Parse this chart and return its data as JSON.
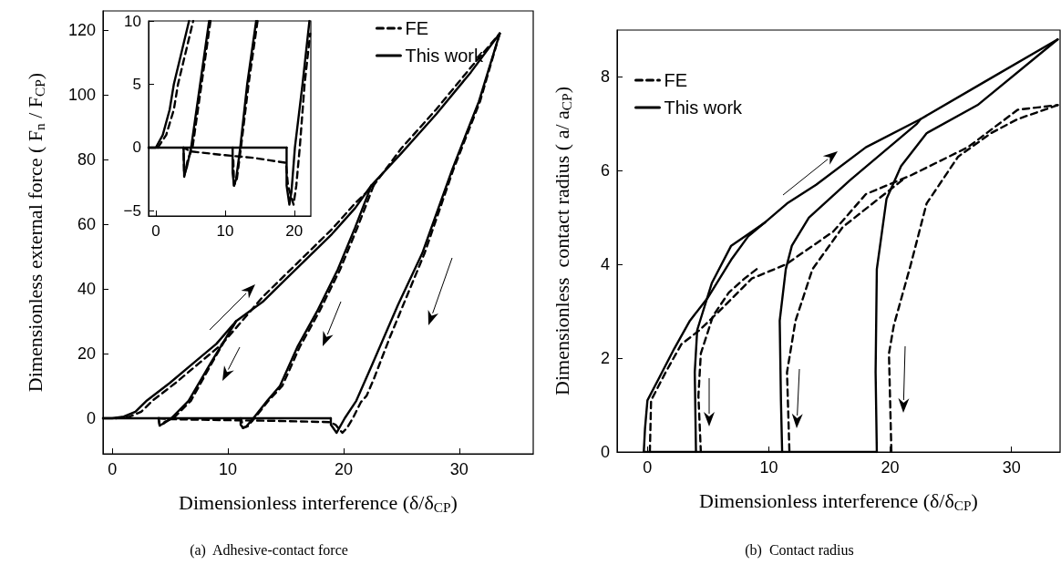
{
  "chart_data": [
    {
      "type": "line",
      "xlabel": "Dimensionless interference (δ/δ$_{CP}$)",
      "ylabel": "Dimensionless external force ( F$_{n}$ / F$_{CP}$)",
      "annotations": [
        "(a)  Adhesive-contact force"
      ],
      "xlim": [
        -0.8,
        36.4
      ],
      "ylim": [
        -11,
        126
      ],
      "xticks": [
        0,
        10,
        20,
        30
      ],
      "yticks": [
        0,
        20,
        40,
        60,
        80,
        100,
        120
      ],
      "grid": false,
      "legend": "top right",
      "marker": "none",
      "series": [
        {
          "name": "FE",
          "color": "#000000",
          "line_style": "dashed",
          "x": [
            0.3,
            1.5,
            2.5,
            3.5,
            5.5,
            7.5,
            9.5,
            11.2,
            13,
            15,
            17,
            19,
            21,
            22.6,
            25,
            28,
            31,
            33.5
          ],
          "values": [
            0,
            0.5,
            2,
            5.5,
            11,
            17,
            23,
            30,
            37.5,
            44.5,
            51.5,
            58.5,
            66.5,
            72,
            83.5,
            95.5,
            108.5,
            119
          ]
        },
        {
          "color": "#000000",
          "line_style": "dashed",
          "x": [
            33.5,
            31.8,
            29.5,
            27,
            25.5,
            24,
            22.6,
            22,
            21.5,
            20.8,
            20.3,
            19.9,
            19.3,
            18.8,
            14,
            10,
            5,
            4.0
          ],
          "values": [
            119,
            98,
            77,
            51,
            38,
            25,
            12,
            7,
            5,
            0,
            -3,
            -4.5,
            -2,
            -1.2,
            -0.8,
            -0.6,
            -0.3,
            0
          ]
        },
        {
          "color": "#000000",
          "line_style": "dashed",
          "x": [
            10.7,
            10.2,
            8.6,
            6.8,
            5.3,
            4.6,
            4.1,
            4.0
          ],
          "values": [
            30,
            27,
            17,
            5.4,
            0,
            -1,
            -2.3,
            0
          ]
        },
        {
          "color": "#000000",
          "line_style": "dashed",
          "x": [
            22.6,
            21.2,
            19.7,
            17.9,
            16.2,
            14.7,
            13.5,
            12.3,
            11.7,
            11.3,
            11.2
          ],
          "values": [
            72,
            59,
            46,
            33,
            22,
            10,
            5.4,
            0,
            -2.5,
            -3,
            -1
          ]
        },
        {
          "name": "This work",
          "color": "#000000",
          "line_style": "solid",
          "x": [
            -0.8,
            0,
            1,
            2,
            3,
            5,
            7,
            9,
            10.7,
            13,
            15,
            17,
            19,
            21,
            22.4,
            25,
            28,
            31,
            33.5
          ],
          "values": [
            0,
            0,
            0.5,
            2,
            5.5,
            11,
            17,
            23,
            30,
            36,
            43,
            50,
            57,
            65,
            72,
            82,
            94,
            107,
            119
          ]
        },
        {
          "color": "#000000",
          "line_style": "solid",
          "x": [
            33.5,
            31.7,
            29.4,
            26.8,
            24.7,
            22.4,
            21.1,
            20.1,
            19.4,
            18.9,
            18.9
          ],
          "values": [
            119,
            98,
            77,
            51,
            35,
            16,
            5.4,
            0,
            -4.5,
            -2,
            0
          ]
        },
        {
          "color": "#000000",
          "line_style": "solid",
          "x": [
            -0.8,
            18.9
          ],
          "values": [
            0,
            0
          ]
        },
        {
          "color": "#000000",
          "line_style": "solid",
          "x": [
            10.7,
            10.2,
            8.5,
            6.6,
            5.1,
            4.5,
            4.1,
            4.0
          ],
          "values": [
            30,
            27,
            17,
            5.4,
            0,
            -1.5,
            -2.2,
            0
          ]
        },
        {
          "color": "#000000",
          "line_style": "solid",
          "x": [
            22.4,
            21,
            19.5,
            17.7,
            16,
            14.5,
            13.4,
            12.2,
            11.6,
            11.3,
            11.1,
            11.1
          ],
          "values": [
            72,
            59,
            46,
            33,
            22,
            10,
            5.4,
            0,
            -2.5,
            -3,
            -2,
            0
          ]
        }
      ]
    },
    {
      "type": "line",
      "xlim": [
        -1.05,
        22.4
      ],
      "ylim": [
        -5.4,
        10
      ],
      "xticks": [
        0,
        10,
        20
      ],
      "yticks": [
        {
          "value": -5,
          "label": "−5"
        },
        0,
        5,
        10
      ],
      "grid": false,
      "marker": "none",
      "series": [
        {
          "color": "#000000",
          "line_style": "dashed",
          "x": [
            0.3,
            1.5,
            2.6,
            3.2,
            4.3,
            5.4
          ],
          "values": [
            0,
            1,
            3,
            5,
            7.5,
            10
          ]
        },
        {
          "color": "#000000",
          "line_style": "dashed",
          "x": [
            7.9,
            6.6,
            5.3,
            4.6,
            4.1,
            4.0,
            5,
            10,
            14,
            18.8,
            19.1,
            19.9,
            20.3,
            20.8,
            21.5,
            22.3
          ],
          "values": [
            10,
            5,
            0,
            -1,
            -2.3,
            0,
            -0.3,
            -0.6,
            -0.8,
            -1.2,
            -3,
            -4.5,
            -3,
            0,
            5,
            9
          ]
        },
        {
          "color": "#000000",
          "line_style": "dashed",
          "x": [
            14.7,
            13.4,
            12.3,
            11.7,
            11.3,
            11.2
          ],
          "values": [
            10,
            5,
            0,
            -2.5,
            -3,
            -1
          ]
        },
        {
          "color": "#000000",
          "line_style": "solid",
          "x": [
            -1.05,
            0,
            1,
            2,
            2.6,
            3.7,
            4.8
          ],
          "values": [
            0,
            0,
            1,
            3,
            5,
            7.5,
            10
          ]
        },
        {
          "color": "#000000",
          "line_style": "solid",
          "x": [
            7.7,
            6.4,
            5.1,
            4.5,
            4.1,
            4.0
          ],
          "values": [
            10,
            5,
            0,
            -1.5,
            -2.2,
            0
          ]
        },
        {
          "color": "#000000",
          "line_style": "solid",
          "x": [
            14.5,
            13.2,
            12.2,
            11.6,
            11.3,
            11.1,
            11.1
          ],
          "values": [
            10,
            5,
            0,
            -2.5,
            -3,
            -2,
            0
          ]
        },
        {
          "color": "#000000",
          "line_style": "solid",
          "x": [
            22.2,
            21.2,
            20.1,
            19.6,
            19.3,
            18.9,
            18.9
          ],
          "values": [
            10,
            5,
            0,
            -3.5,
            -4.5,
            -3,
            0
          ]
        },
        {
          "color": "#000000",
          "line_style": "solid",
          "x": [
            -1.05,
            18.9
          ],
          "values": [
            0,
            0
          ]
        }
      ]
    },
    {
      "type": "line",
      "xlabel": "Dimensionless interference (δ/δ$_{CP}$)",
      "ylabel": "Dimensionless  contact radius ( a/ a$_{CP}$)",
      "annotations": [
        "(b)  Contact radius"
      ],
      "xlim": [
        -2.5,
        34
      ],
      "ylim": [
        0,
        9
      ],
      "xticks": [
        0,
        10,
        20,
        30
      ],
      "yticks": [
        0,
        2,
        4,
        6,
        8
      ],
      "grid": false,
      "legend": "top left",
      "marker": "none",
      "series": [
        {
          "name": "FE",
          "color": "#000000",
          "line_style": "dashed",
          "x": [
            0.2,
            0.3,
            1.5,
            2.8,
            4.3,
            5.9,
            8.6,
            11.4,
            15.3,
            18,
            21.7,
            26.4,
            30.5,
            33.8
          ],
          "values": [
            0,
            1.1,
            1.7,
            2.3,
            2.6,
            3.0,
            3.7,
            4.0,
            4.7,
            5.5,
            5.9,
            6.5,
            7.3,
            7.4
          ]
        },
        {
          "color": "#000000",
          "line_style": "dashed",
          "x": [
            33.8,
            30.5,
            28.3,
            25.6,
            23,
            21.7,
            20.3,
            19.9,
            20.1
          ],
          "values": [
            7.4,
            7.1,
            6.8,
            6.3,
            5.3,
            4.0,
            2.7,
            2.1,
            0
          ]
        },
        {
          "color": "#000000",
          "line_style": "dashed",
          "x": [
            21,
            16.1,
            13.6,
            12.2,
            11.5,
            11.7
          ],
          "values": [
            5.8,
            4.8,
            3.9,
            2.8,
            1.7,
            0
          ]
        },
        {
          "color": "#000000",
          "line_style": "dashed",
          "x": [
            9,
            8,
            6.7,
            5.4,
            4.4,
            4.2,
            4.4
          ],
          "values": [
            3.9,
            3.7,
            3.4,
            2.9,
            2.1,
            1.2,
            0
          ]
        },
        {
          "name": "This work",
          "color": "#000000",
          "line_style": "solid",
          "x": [
            -0.3,
            -0.2,
            0,
            1,
            2.2,
            3.5,
            5,
            6.9,
            8.3,
            9.7,
            11.5,
            13.9,
            18,
            22.5,
            27.8,
            33.8
          ],
          "values": [
            0,
            0.5,
            1.1,
            1.6,
            2.2,
            2.8,
            3.3,
            4.1,
            4.6,
            4.9,
            5.3,
            5.7,
            6.5,
            7.1,
            7.9,
            8.8
          ]
        },
        {
          "color": "#000000",
          "line_style": "solid",
          "x": [
            33.8,
            27.2,
            23,
            20.9,
            19.7,
            18.9,
            18.8,
            18.9
          ],
          "values": [
            8.8,
            7.4,
            6.8,
            6.1,
            5.4,
            3.9,
            1.7,
            0
          ]
        },
        {
          "color": "#000000",
          "line_style": "solid",
          "x": [
            -0.3,
            18.9
          ],
          "values": [
            0,
            0
          ]
        },
        {
          "color": "#000000",
          "line_style": "solid",
          "x": [
            9.7,
            8.6,
            6.9,
            5.3,
            4.1,
            3.9,
            4.0
          ],
          "values": [
            4.9,
            4.7,
            4.4,
            3.6,
            2.6,
            1.7,
            0
          ]
        },
        {
          "color": "#000000",
          "line_style": "solid",
          "x": [
            22.5,
            22.2,
            16.7,
            13.3,
            11.9,
            11.4,
            10.9,
            11.0,
            11.1
          ],
          "values": [
            7.1,
            7.0,
            5.8,
            5.0,
            4.4,
            3.9,
            2.8,
            1.1,
            0
          ]
        }
      ]
    }
  ]
}
